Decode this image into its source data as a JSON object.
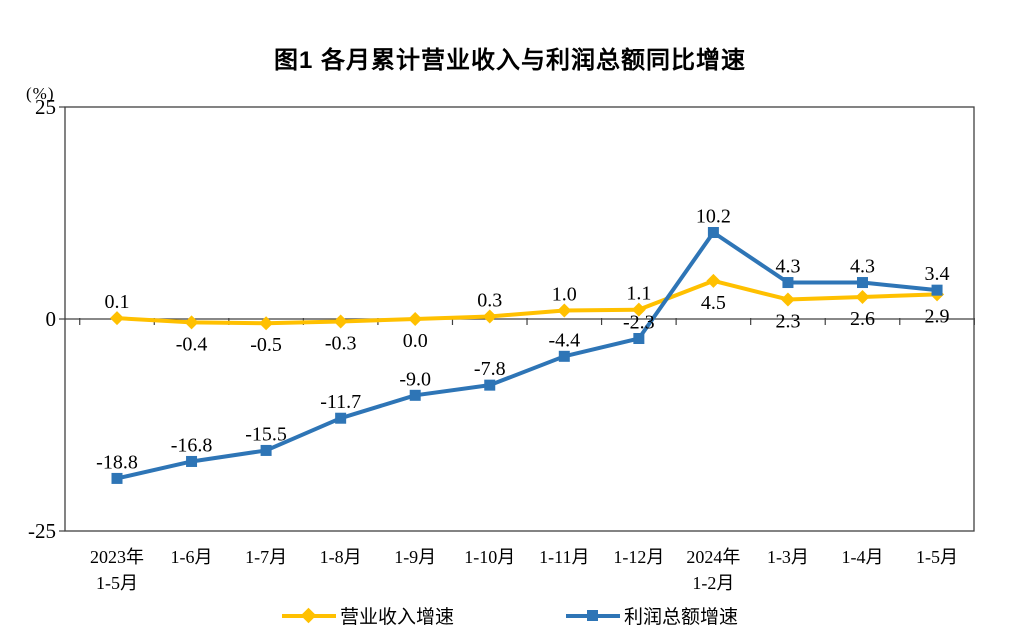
{
  "title": "图1  各月累计营业收入与利润总额同比增速",
  "chart_data": {
    "type": "line",
    "title": "图1  各月累计营业收入与利润总额同比增速",
    "unit": "(%)",
    "categories": [
      "2023年\n1-5月",
      "1-6月",
      "1-7月",
      "1-8月",
      "1-9月",
      "1-10月",
      "1-11月",
      "1-12月",
      "2024年\n1-2月",
      "1-3月",
      "1-4月",
      "1-5月"
    ],
    "series": [
      {
        "name": "营业收入增速",
        "color": "#FFC000",
        "marker": "diamond",
        "values": [
          0.1,
          -0.4,
          -0.5,
          -0.3,
          0.0,
          0.3,
          1.0,
          1.1,
          4.5,
          2.3,
          2.6,
          2.9
        ],
        "label_side": [
          "above",
          "below",
          "below",
          "below",
          "below",
          "above",
          "above",
          "above",
          "below",
          "below",
          "below",
          "below"
        ]
      },
      {
        "name": "利润总额增速",
        "color": "#2E75B6",
        "marker": "square",
        "values": [
          -18.8,
          -16.8,
          -15.5,
          -11.7,
          -9.0,
          -7.8,
          -4.4,
          -2.3,
          10.2,
          4.3,
          4.3,
          3.4
        ],
        "label_side": [
          "above",
          "above",
          "above",
          "above",
          "above",
          "above",
          "above",
          "above",
          "above",
          "above",
          "above",
          "above"
        ]
      }
    ],
    "ylim": [
      -25,
      25
    ],
    "yticks": [
      25,
      0,
      -25
    ],
    "grid": false,
    "legend_position": "bottom",
    "axis_color": "#404040",
    "label_color": "#000000"
  }
}
